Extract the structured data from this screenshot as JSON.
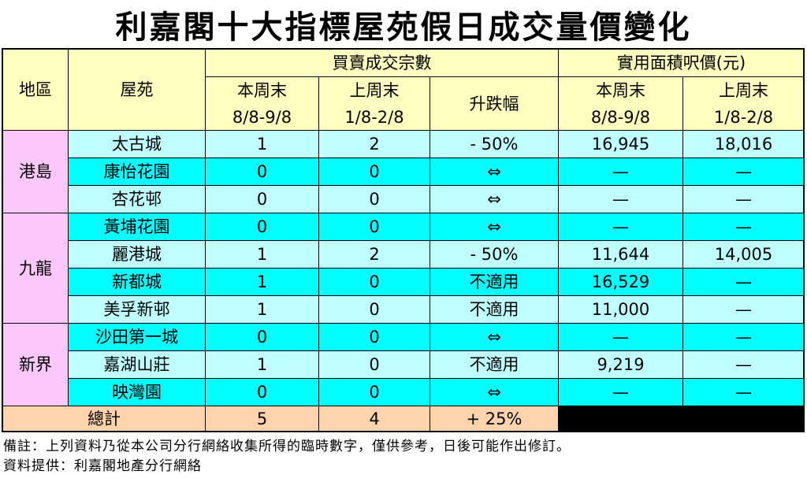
{
  "title": "利嘉閣十大指標屋苑假日成交量價變化",
  "header": {
    "region": "地區",
    "estate": "屋苑",
    "group_count": "買賣成交宗數",
    "group_price": "實用面積呎價(元)",
    "columns": [
      {
        "label": "本周末",
        "dates": "8/8-9/8"
      },
      {
        "label": "上周末",
        "dates": "1/8-2/8"
      },
      {
        "label": "升跌幅"
      },
      {
        "label": "本周末",
        "dates": "8/8-9/8"
      },
      {
        "label": "上周末",
        "dates": "1/8-2/8"
      }
    ]
  },
  "regions": [
    {
      "name": "港島",
      "rows": [
        [
          "太古城",
          "1",
          "2",
          "- 50%",
          "16,945",
          "18,016"
        ],
        [
          "康怡花園",
          "0",
          "0",
          "⇔",
          "—",
          "—"
        ],
        [
          "杏花邨",
          "0",
          "0",
          "⇔",
          "—",
          "—"
        ]
      ]
    },
    {
      "name": "九龍",
      "rows": [
        [
          "黃埔花園",
          "0",
          "0",
          "⇔",
          "—",
          "—"
        ],
        [
          "麗港城",
          "1",
          "2",
          "- 50%",
          "11,644",
          "14,005"
        ],
        [
          "新都城",
          "1",
          "0",
          "不適用",
          "16,529",
          "—"
        ],
        [
          "美孚新邨",
          "1",
          "0",
          "不適用",
          "11,000",
          "—"
        ]
      ]
    },
    {
      "name": "新界",
      "rows": [
        [
          "沙田第一城",
          "0",
          "0",
          "⇔",
          "—",
          "—"
        ],
        [
          "嘉湖山莊",
          "1",
          "0",
          "不適用",
          "9,219",
          "—"
        ],
        [
          "映灣園",
          "0",
          "0",
          "⇔",
          "—",
          "—"
        ]
      ]
    }
  ],
  "total": {
    "label": "總計",
    "cells": [
      "5",
      "4",
      "+ 25%"
    ]
  },
  "notes": [
    "備註：上列資料乃從本公司分行網絡收集所得的臨時數字，僅供參考，日後可能作出修訂。",
    "資料提供：利嘉閣地產分行網絡"
  ]
}
